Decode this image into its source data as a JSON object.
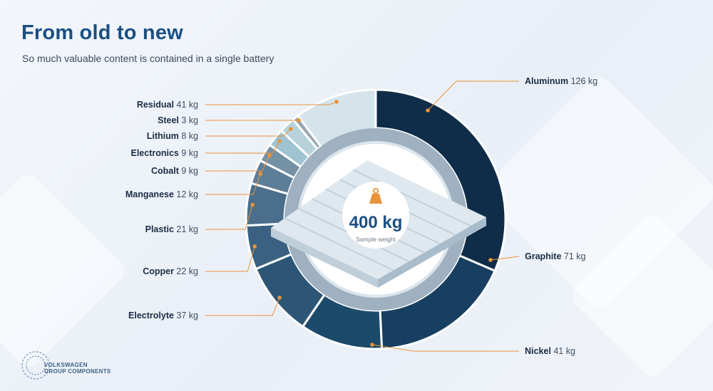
{
  "header": {
    "title": "From old to new",
    "subtitle": "So much valuable content is contained in a single battery"
  },
  "center": {
    "weight": "400 kg",
    "caption": "Sample weight"
  },
  "logo": {
    "line1": "VOLKSWAGEN",
    "line2": "GROUP COMPONENTS"
  },
  "colors": {
    "title": "#1b4f82",
    "ring_dark": "#0e2e4a",
    "ring_light": "#d3e1ea",
    "weight_icon": "#e8943a"
  },
  "chart_data": {
    "type": "pie",
    "title": "",
    "unit": "kg",
    "total": 400,
    "slices": [
      {
        "name": "Aluminum",
        "value": 126,
        "label": "Aluminum",
        "value_label": "126 kg",
        "color": "#0f2d48"
      },
      {
        "name": "Graphite",
        "value": 71,
        "label": "Graphite",
        "value_label": "71 kg",
        "color": "#173f61"
      },
      {
        "name": "Nickel",
        "value": 41,
        "label": "Nickel",
        "value_label": "41 kg",
        "color": "#1c4a6b"
      },
      {
        "name": "Electrolyte",
        "value": 37,
        "label": "Electrolyte",
        "value_label": "37 kg",
        "color": "#2d5676"
      },
      {
        "name": "Copper",
        "value": 22,
        "label": "Copper",
        "value_label": "22 kg",
        "color": "#3a6182"
      },
      {
        "name": "Plastic",
        "value": 21,
        "label": "Plastic",
        "value_label": "21 kg",
        "color": "#4a6e8c"
      },
      {
        "name": "Manganese",
        "value": 12,
        "label": "Manganese",
        "value_label": "12 kg",
        "color": "#5d7e98"
      },
      {
        "name": "Cobalt",
        "value": 9,
        "label": "Cobalt",
        "value_label": "9 kg",
        "color": "#7591a6"
      },
      {
        "name": "Electronics",
        "value": 9,
        "label": "Electronics",
        "value_label": "9 kg",
        "color": "#9fc3d1"
      },
      {
        "name": "Lithium",
        "value": 8,
        "label": "Lithium",
        "value_label": "8 kg",
        "color": "#b8d2dc"
      },
      {
        "name": "Steel",
        "value": 3,
        "label": "Steel",
        "value_label": "3 kg",
        "color": "#9aa8b4"
      },
      {
        "name": "Residual",
        "value": 41,
        "label": "Residual",
        "value_label": "41 kg",
        "color": "#d5e3ea"
      }
    ]
  }
}
